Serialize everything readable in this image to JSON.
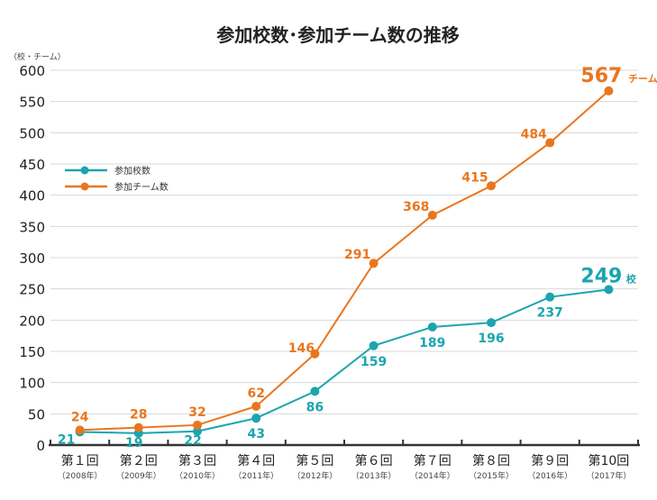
{
  "chart_data": {
    "type": "line",
    "title": "参加校数･参加チーム数の推移",
    "ylabel": "（校・チーム）",
    "ylim": [
      0,
      600
    ],
    "yticks": [
      0,
      50,
      100,
      150,
      200,
      250,
      300,
      350,
      400,
      450,
      500,
      550,
      600
    ],
    "grid": true,
    "legend_placement": "left",
    "categories": [
      "第１回",
      "第２回",
      "第３回",
      "第４回",
      "第５回",
      "第６回",
      "第７回",
      "第８回",
      "第９回",
      "第10回"
    ],
    "category_years": [
      "（2008年）",
      "（2009年）",
      "（2010年）",
      "（2011年）",
      "（2012年）",
      "（2013年）",
      "（2014年）",
      "（2015年）",
      "（2016年）",
      "（2017年）"
    ],
    "series": [
      {
        "name": "参加校数",
        "color": "#1ba5ae",
        "values": [
          21,
          19,
          22,
          43,
          86,
          159,
          189,
          196,
          237,
          249
        ],
        "last_unit": "校"
      },
      {
        "name": "参加チーム数",
        "color": "#e9761e",
        "values": [
          24,
          28,
          32,
          62,
          146,
          291,
          368,
          415,
          484,
          567
        ],
        "last_unit": "チーム"
      }
    ]
  }
}
